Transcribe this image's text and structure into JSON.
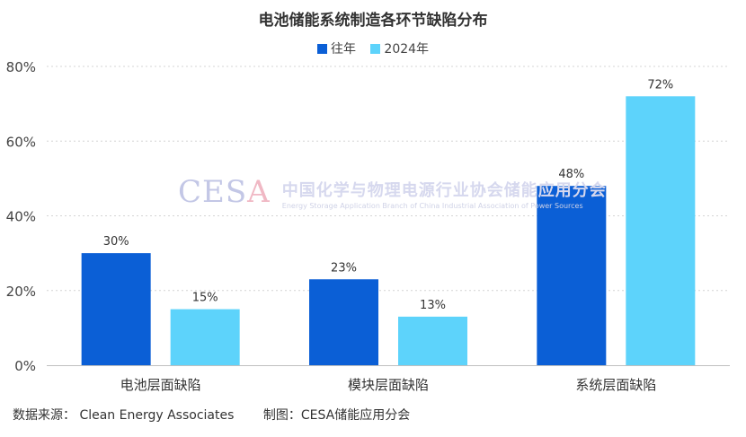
{
  "chart_data": {
    "type": "bar",
    "title": "电池储能系统制造各环节缺陷分布",
    "categories": [
      "电池层面缺陷",
      "模块层面缺陷",
      "系统层面缺陷"
    ],
    "series": [
      {
        "name": "往年",
        "values": [
          30,
          23,
          48
        ],
        "labels": [
          "30%",
          "23%",
          "48%"
        ],
        "color": "#0b5fd6"
      },
      {
        "name": "2024年",
        "values": [
          15,
          13,
          72
        ],
        "labels": [
          "15%",
          "13%",
          "72%"
        ],
        "color": "#5dd3fb"
      }
    ],
    "ylim": [
      0,
      80
    ],
    "yticks": [
      0,
      20,
      40,
      60,
      80
    ],
    "ytick_labels": [
      "0%",
      "20%",
      "40%",
      "60%",
      "80%"
    ],
    "xlabel": "",
    "ylabel": "",
    "grid": "dotted horizontal",
    "legend": "top-center"
  },
  "footer": {
    "source": "数据来源： Clean Energy Associates",
    "credit": "制图：CESA储能应用分会"
  },
  "watermark": {
    "logo_main": "CES",
    "logo_accent": "A",
    "name_cn": "中国化学与物理电源行业协会储能应用分会",
    "name_en": "Energy Storage Application Branch of China Industrial Association of Power Sources"
  }
}
